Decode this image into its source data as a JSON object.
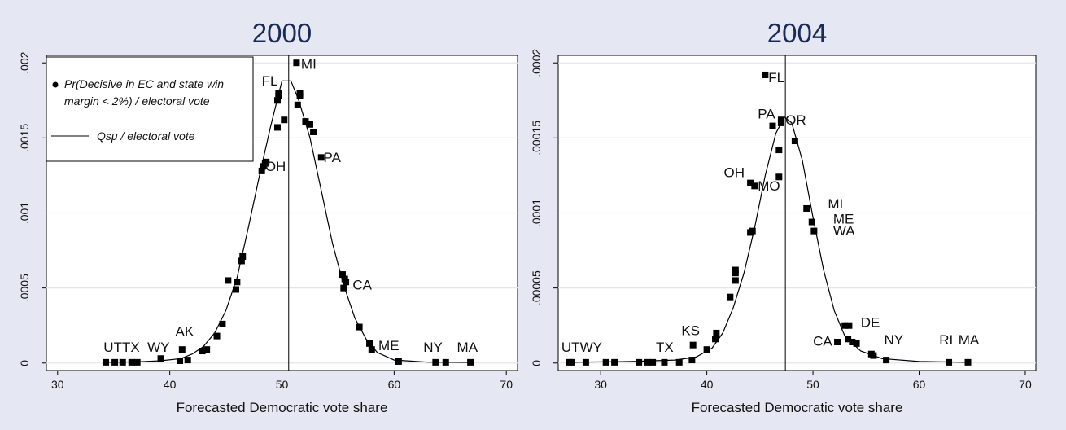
{
  "chart_data": [
    {
      "type": "scatter",
      "title": "2000",
      "xlabel": "Forecasted Democratic vote share",
      "ylabel": "",
      "xlim": [
        29,
        71
      ],
      "ylim": [
        -5e-05,
        0.00205
      ],
      "xticks": [
        "30",
        "40",
        "50",
        "60",
        "70"
      ],
      "xtick_values": [
        30,
        40,
        50,
        60,
        70
      ],
      "yticks": [
        "0",
        ".0005",
        ".001",
        ".0015",
        ".002"
      ],
      "ytick_values": [
        0,
        0.0005,
        0.001,
        0.0015,
        0.002
      ],
      "grid": true,
      "vline_x": 50.6,
      "legend": {
        "placement": "top-left",
        "entries": [
          {
            "symbol": "dot",
            "text_lines": [
              "Pr(Decisive in EC and state win",
              "margin < 2%) / electoral vote"
            ]
          },
          {
            "symbol": "line",
            "text_lines": [
              "Qsμ / electoral vote"
            ]
          }
        ]
      },
      "series": [
        {
          "marker": "square",
          "points": [
            {
              "x": 34.3,
              "y": 5e-06
            },
            {
              "x": 35.1,
              "y": 5e-06
            },
            {
              "x": 35.8,
              "y": 5e-06
            },
            {
              "x": 36.6,
              "y": 5e-06
            },
            {
              "x": 37.1,
              "y": 5e-06
            },
            {
              "x": 39.2,
              "y": 3e-05
            },
            {
              "x": 40.9,
              "y": 1.5e-05
            },
            {
              "x": 41.1,
              "y": 9e-05
            },
            {
              "x": 41.6,
              "y": 2e-05
            },
            {
              "x": 42.9,
              "y": 8e-05
            },
            {
              "x": 43.3,
              "y": 9e-05
            },
            {
              "x": 44.2,
              "y": 0.00018
            },
            {
              "x": 44.7,
              "y": 0.00026
            },
            {
              "x": 45.2,
              "y": 0.00055
            },
            {
              "x": 45.9,
              "y": 0.00049
            },
            {
              "x": 46.0,
              "y": 0.00054
            },
            {
              "x": 46.4,
              "y": 0.00068
            },
            {
              "x": 46.5,
              "y": 0.00071
            },
            {
              "x": 48.2,
              "y": 0.00128
            },
            {
              "x": 48.3,
              "y": 0.00131
            },
            {
              "x": 48.5,
              "y": 0.00133
            },
            {
              "x": 48.6,
              "y": 0.00134
            },
            {
              "x": 49.6,
              "y": 0.00157
            },
            {
              "x": 49.6,
              "y": 0.00175
            },
            {
              "x": 49.7,
              "y": 0.00178
            },
            {
              "x": 49.7,
              "y": 0.0018
            },
            {
              "x": 50.2,
              "y": 0.00162
            },
            {
              "x": 51.3,
              "y": 0.002
            },
            {
              "x": 51.4,
              "y": 0.00172
            },
            {
              "x": 51.6,
              "y": 0.0018
            },
            {
              "x": 51.6,
              "y": 0.00178
            },
            {
              "x": 52.1,
              "y": 0.00161
            },
            {
              "x": 52.5,
              "y": 0.00159
            },
            {
              "x": 52.8,
              "y": 0.00154
            },
            {
              "x": 53.5,
              "y": 0.00137
            },
            {
              "x": 55.4,
              "y": 0.00059
            },
            {
              "x": 55.6,
              "y": 0.00056
            },
            {
              "x": 55.5,
              "y": 0.0005
            },
            {
              "x": 55.7,
              "y": 0.00054
            },
            {
              "x": 56.9,
              "y": 0.00024
            },
            {
              "x": 57.8,
              "y": 0.00013
            },
            {
              "x": 58.0,
              "y": 9e-05
            },
            {
              "x": 60.4,
              "y": 1e-05
            },
            {
              "x": 63.7,
              "y": 5e-06
            },
            {
              "x": 64.6,
              "y": 5e-06
            },
            {
              "x": 66.8,
              "y": 5e-06
            }
          ]
        },
        {
          "marker": "line",
          "points": [
            {
              "x": 34.3,
              "y": 5e-06
            },
            {
              "x": 37.1,
              "y": 8e-06
            },
            {
              "x": 39.2,
              "y": 1.5e-05
            },
            {
              "x": 41.0,
              "y": 3e-05
            },
            {
              "x": 42.0,
              "y": 6e-05
            },
            {
              "x": 43.0,
              "y": 0.00011
            },
            {
              "x": 44.0,
              "y": 0.0002
            },
            {
              "x": 45.0,
              "y": 0.00035
            },
            {
              "x": 46.0,
              "y": 0.00057
            },
            {
              "x": 47.0,
              "y": 0.0009
            },
            {
              "x": 48.0,
              "y": 0.00125
            },
            {
              "x": 49.0,
              "y": 0.00158
            },
            {
              "x": 50.0,
              "y": 0.00188
            },
            {
              "x": 50.8,
              "y": 0.00188
            },
            {
              "x": 51.5,
              "y": 0.00175
            },
            {
              "x": 52.5,
              "y": 0.0015
            },
            {
              "x": 53.5,
              "y": 0.00115
            },
            {
              "x": 54.5,
              "y": 0.0008
            },
            {
              "x": 55.5,
              "y": 0.00052
            },
            {
              "x": 56.5,
              "y": 0.0003
            },
            {
              "x": 57.5,
              "y": 0.00016
            },
            {
              "x": 58.5,
              "y": 7e-05
            },
            {
              "x": 60.0,
              "y": 2e-05
            },
            {
              "x": 63.0,
              "y": 6e-06
            },
            {
              "x": 66.8,
              "y": 4e-06
            }
          ]
        }
      ],
      "annotations": [
        {
          "text": "UTTX",
          "x": 34.1,
          "y": 7.5e-05
        },
        {
          "text": "WY",
          "x": 38.0,
          "y": 7.5e-05
        },
        {
          "text": "AK",
          "x": 40.5,
          "y": 0.00018
        },
        {
          "text": "FL",
          "x": 48.2,
          "y": 0.00185
        },
        {
          "text": "MI",
          "x": 51.7,
          "y": 0.00196
        },
        {
          "text": "OH",
          "x": 48.5,
          "y": 0.00128
        },
        {
          "text": "PA",
          "x": 53.7,
          "y": 0.00134
        },
        {
          "text": "CA",
          "x": 56.3,
          "y": 0.00049
        },
        {
          "text": "ME",
          "x": 58.6,
          "y": 8.5e-05
        },
        {
          "text": "NY",
          "x": 62.6,
          "y": 7.5e-05
        },
        {
          "text": "MA",
          "x": 65.6,
          "y": 7.5e-05
        }
      ]
    },
    {
      "type": "scatter",
      "title": "2004",
      "xlabel": "Forecasted Democratic vote share",
      "ylabel": "",
      "xlim": [
        26,
        71
      ],
      "ylim": [
        -5e-06,
        0.000205
      ],
      "xticks": [
        "30",
        "40",
        "50",
        "60",
        "70"
      ],
      "xtick_values": [
        30,
        40,
        50,
        60,
        70
      ],
      "yticks": [
        "0",
        ".00005",
        ".0001",
        ".00015",
        ".0002"
      ],
      "ytick_values": [
        0,
        5e-05,
        0.0001,
        0.00015,
        0.0002
      ],
      "grid": true,
      "vline_x": 47.4,
      "series": [
        {
          "marker": "square",
          "points": [
            {
              "x": 27.0,
              "y": 5e-07
            },
            {
              "x": 27.3,
              "y": 5e-07
            },
            {
              "x": 28.6,
              "y": 5e-07
            },
            {
              "x": 30.5,
              "y": 5e-07
            },
            {
              "x": 31.3,
              "y": 5e-07
            },
            {
              "x": 33.6,
              "y": 5e-07
            },
            {
              "x": 34.4,
              "y": 5e-07
            },
            {
              "x": 34.9,
              "y": 5e-07
            },
            {
              "x": 36.0,
              "y": 5e-07
            },
            {
              "x": 37.4,
              "y": 5e-07
            },
            {
              "x": 38.6,
              "y": 2e-06
            },
            {
              "x": 38.7,
              "y": 1.2e-05
            },
            {
              "x": 40.0,
              "y": 9e-06
            },
            {
              "x": 40.8,
              "y": 1.6e-05
            },
            {
              "x": 40.9,
              "y": 2e-05
            },
            {
              "x": 42.2,
              "y": 4.4e-05
            },
            {
              "x": 42.7,
              "y": 5.5e-05
            },
            {
              "x": 42.7,
              "y": 6.2e-05
            },
            {
              "x": 42.7,
              "y": 6e-05
            },
            {
              "x": 44.1,
              "y": 8.7e-05
            },
            {
              "x": 44.3,
              "y": 8.8e-05
            },
            {
              "x": 44.1,
              "y": 0.00012
            },
            {
              "x": 44.5,
              "y": 0.000118
            },
            {
              "x": 45.5,
              "y": 0.000192
            },
            {
              "x": 46.2,
              "y": 0.000158
            },
            {
              "x": 46.8,
              "y": 0.000142
            },
            {
              "x": 46.8,
              "y": 0.000124
            },
            {
              "x": 47.0,
              "y": 0.000162
            },
            {
              "x": 47.0,
              "y": 0.00016
            },
            {
              "x": 48.3,
              "y": 0.000148
            },
            {
              "x": 49.4,
              "y": 0.000103
            },
            {
              "x": 49.9,
              "y": 9.4e-05
            },
            {
              "x": 50.1,
              "y": 8.8e-05
            },
            {
              "x": 52.3,
              "y": 1.4e-05
            },
            {
              "x": 53.0,
              "y": 2.5e-05
            },
            {
              "x": 53.3,
              "y": 1.6e-05
            },
            {
              "x": 53.4,
              "y": 2.5e-05
            },
            {
              "x": 53.7,
              "y": 1.4e-05
            },
            {
              "x": 54.1,
              "y": 1.3e-05
            },
            {
              "x": 55.5,
              "y": 6e-06
            },
            {
              "x": 55.7,
              "y": 5e-06
            },
            {
              "x": 56.9,
              "y": 2e-06
            },
            {
              "x": 62.8,
              "y": 5e-07
            },
            {
              "x": 64.6,
              "y": 5e-07
            }
          ]
        },
        {
          "marker": "line",
          "points": [
            {
              "x": 27.0,
              "y": 5e-07
            },
            {
              "x": 33.0,
              "y": 1e-06
            },
            {
              "x": 37.0,
              "y": 2e-06
            },
            {
              "x": 39.0,
              "y": 4e-06
            },
            {
              "x": 40.5,
              "y": 1e-05
            },
            {
              "x": 41.5,
              "y": 2e-05
            },
            {
              "x": 42.5,
              "y": 3.7e-05
            },
            {
              "x": 43.5,
              "y": 6e-05
            },
            {
              "x": 44.5,
              "y": 9e-05
            },
            {
              "x": 45.5,
              "y": 0.000125
            },
            {
              "x": 46.5,
              "y": 0.000153
            },
            {
              "x": 47.3,
              "y": 0.000164
            },
            {
              "x": 48.0,
              "y": 0.00016
            },
            {
              "x": 49.0,
              "y": 0.000135
            },
            {
              "x": 50.0,
              "y": 9.7e-05
            },
            {
              "x": 51.0,
              "y": 6.2e-05
            },
            {
              "x": 52.0,
              "y": 3.5e-05
            },
            {
              "x": 53.0,
              "y": 1.8e-05
            },
            {
              "x": 54.5,
              "y": 8e-06
            },
            {
              "x": 56.5,
              "y": 3e-06
            },
            {
              "x": 60.0,
              "y": 1e-06
            },
            {
              "x": 64.6,
              "y": 5e-07
            }
          ]
        }
      ],
      "annotations": [
        {
          "text": "UTWY",
          "x": 26.3,
          "y": 7.5e-06
        },
        {
          "text": "TX",
          "x": 35.2,
          "y": 7.5e-06
        },
        {
          "text": "KS",
          "x": 37.6,
          "y": 1.85e-05
        },
        {
          "text": "FL",
          "x": 45.8,
          "y": 0.000187
        },
        {
          "text": "PA",
          "x": 44.8,
          "y": 0.000163
        },
        {
          "text": "OR",
          "x": 47.4,
          "y": 0.000159
        },
        {
          "text": "OH",
          "x": 41.6,
          "y": 0.000124
        },
        {
          "text": "MO",
          "x": 44.8,
          "y": 0.000115
        },
        {
          "text": "MI",
          "x": 51.4,
          "y": 0.000103
        },
        {
          "text": "ME",
          "x": 51.9,
          "y": 9.3e-05
        },
        {
          "text": "WA",
          "x": 51.9,
          "y": 8.5e-05
        },
        {
          "text": "DE",
          "x": 54.5,
          "y": 2.4e-05
        },
        {
          "text": "CA",
          "x": 50.0,
          "y": 1.15e-05
        },
        {
          "text": "NY",
          "x": 56.7,
          "y": 1.25e-05
        },
        {
          "text": "RI",
          "x": 61.9,
          "y": 1.25e-05
        },
        {
          "text": "MA",
          "x": 63.7,
          "y": 1.25e-05
        }
      ]
    }
  ]
}
